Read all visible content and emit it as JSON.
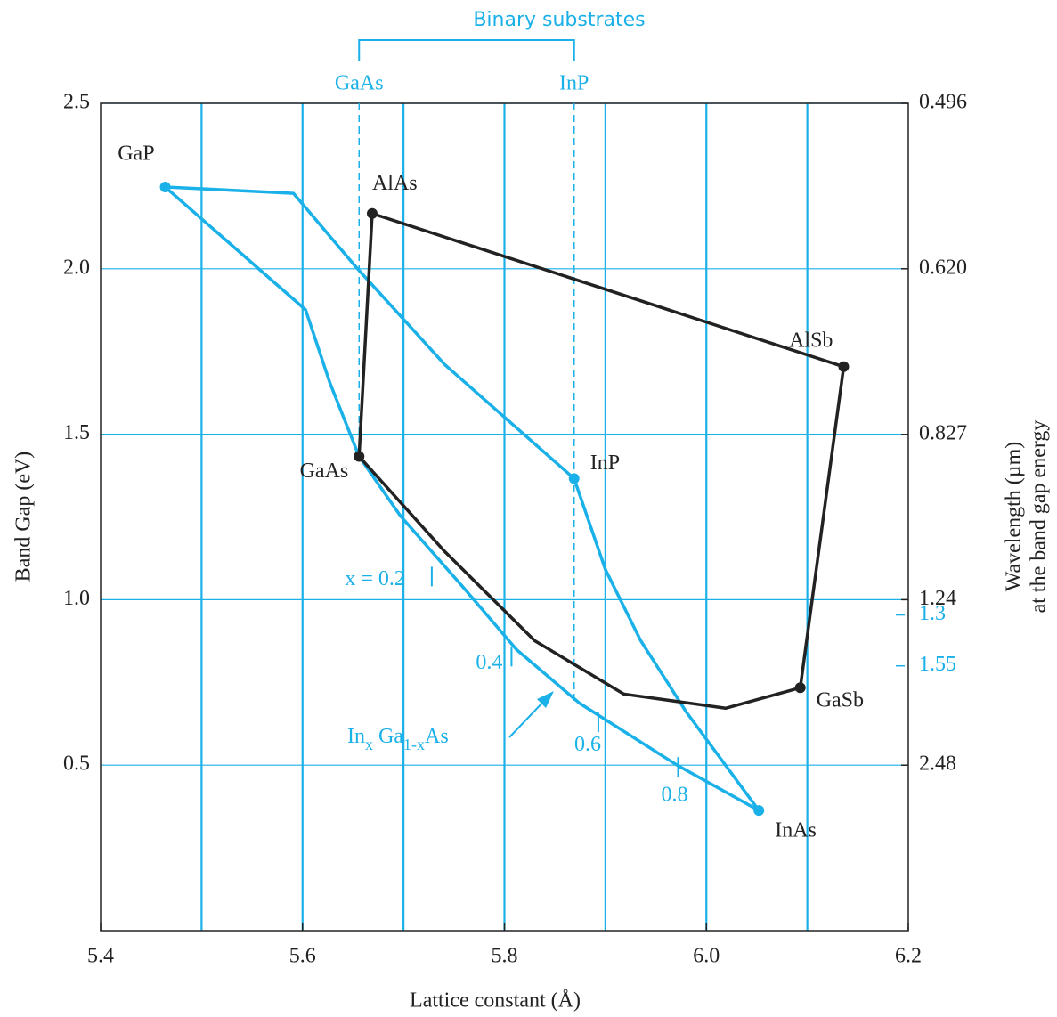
{
  "chart_data": {
    "type": "line",
    "xlabel": "Lattice constant (Å)",
    "ylabel": "Band Gap (eV)",
    "y2label": [
      "Wavelength (µm)",
      "at the band gap energy"
    ],
    "xlim": [
      5.4,
      6.2
    ],
    "ylim": [
      0,
      2.5
    ],
    "xticks": [
      5.4,
      5.6,
      5.8,
      {
        "value": 6.0,
        "label": "6.0"
      },
      6.2
    ],
    "x_gridlines": [
      5.5,
      5.6,
      5.7,
      5.8,
      5.9,
      6.0,
      6.1
    ],
    "yticks": [
      0.5,
      {
        "value": 1.0,
        "label": "1.0"
      },
      1.5,
      {
        "value": 2.0,
        "label": "2.0"
      },
      2.5
    ],
    "grid": true,
    "grid_color": "#1ab0e8",
    "y2scale": "reciprocal",
    "y2lim": [
      null,
      0.496
    ],
    "y2ticks": [
      0.496,
      {
        "value": 0.62,
        "label": "0.620"
      },
      0.827,
      1.24,
      {
        "value": 1.3,
        "label": "1.3",
        "color": "#1ab0e8"
      },
      {
        "value": 1.55,
        "label": "1.55",
        "color": "#1ab0e8"
      },
      2.48
    ],
    "compounds": [
      {
        "name": "GaP",
        "x": 5.464,
        "y": 2.247,
        "color": "#1ab0e8"
      },
      {
        "name": "AlAs",
        "x": 5.669,
        "y": 2.167,
        "color": "#222222"
      },
      {
        "name": "AlSb",
        "x": 6.136,
        "y": 1.704,
        "color": "#222222"
      },
      {
        "name": "GaAs",
        "x": 5.656,
        "y": 1.433,
        "color": "#222222"
      },
      {
        "name": "InP",
        "x": 5.869,
        "y": 1.366,
        "color": "#1ab0e8"
      },
      {
        "name": "GaSb",
        "x": 6.093,
        "y": 0.734,
        "color": "#222222"
      },
      {
        "name": "InAs",
        "x": 6.052,
        "y": 0.363,
        "color": "#1ab0e8"
      }
    ],
    "curves": [
      {
        "color": "#1ab0e8",
        "x": [
          5.464,
          5.603,
          5.627,
          5.656,
          5.697,
          5.759,
          5.812,
          5.874,
          5.971,
          6.052
        ],
        "y": [
          2.247,
          1.876,
          1.656,
          1.433,
          1.253,
          1.038,
          0.849,
          0.688,
          0.5,
          0.363
        ]
      },
      {
        "color": "#1ab0e8",
        "x": [
          5.464,
          5.591,
          5.653,
          5.741,
          5.869
        ],
        "y": [
          2.247,
          2.228,
          2.005,
          1.71,
          1.366
        ]
      },
      {
        "color": "#1ab0e8",
        "x": [
          5.869,
          5.9,
          5.935,
          5.98,
          6.052
        ],
        "y": [
          1.366,
          1.091,
          0.876,
          0.661,
          0.363
        ]
      },
      {
        "color": "#222222",
        "x": [
          5.669,
          6.136
        ],
        "y": [
          2.167,
          1.704
        ]
      },
      {
        "color": "#222222",
        "x": [
          6.136,
          6.093
        ],
        "y": [
          1.704,
          0.734
        ]
      },
      {
        "color": "#222222",
        "x": [
          5.669,
          5.656
        ],
        "y": [
          2.167,
          1.433
        ]
      },
      {
        "color": "#222222",
        "x": [
          5.656,
          5.741,
          5.83,
          5.918,
          6.019,
          6.093
        ],
        "y": [
          1.433,
          1.145,
          0.876,
          0.715,
          0.672,
          0.734
        ]
      }
    ],
    "composition_marks": [
      {
        "label": "x = 0.2",
        "x": 5.728,
        "y": 1.07
      },
      {
        "label": "0.4",
        "x": 5.807,
        "y": 0.828
      },
      {
        "label": "0.6",
        "x": 5.893,
        "y": 0.629
      },
      {
        "label": "0.8",
        "x": 5.972,
        "y": 0.495
      }
    ],
    "alloy_label": [
      "In",
      "x",
      " Ga",
      "1-x",
      "As"
    ],
    "substrates": {
      "title": "Binary substrates",
      "items": [
        {
          "label": "GaAs",
          "x": 5.656
        },
        {
          "label": "InP",
          "x": 5.869
        }
      ]
    }
  }
}
